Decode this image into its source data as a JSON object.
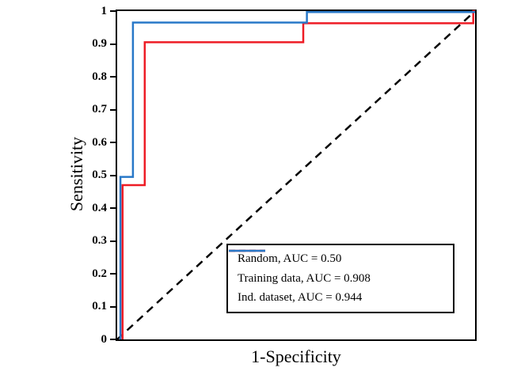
{
  "figure": {
    "background": "#ffffff",
    "border_color": "#000000"
  },
  "chart_data": {
    "type": "line",
    "subtype": "roc-curve",
    "title": "",
    "xlabel": "1-Specificity",
    "ylabel": "Sensitivity",
    "xlim": [
      0,
      1
    ],
    "ylim": [
      0,
      1
    ],
    "yticks": [
      0,
      0.1,
      0.2,
      0.3,
      0.4,
      0.5,
      0.6,
      0.7,
      0.8,
      0.9,
      1
    ],
    "xticks_labeled": false,
    "grid": false,
    "legend_position": "lower-right",
    "series": [
      {
        "name": "Random, AUC = 0.50",
        "color": "#000000",
        "style": "dashed",
        "width": 2.5,
        "points": [
          [
            0,
            0
          ],
          [
            1,
            1
          ]
        ]
      },
      {
        "name": "Training data, AUC = 0.908",
        "color": "#ee1c25",
        "style": "solid",
        "width": 2.5,
        "points": [
          [
            0.015,
            0
          ],
          [
            0.015,
            0.47
          ],
          [
            0.077,
            0.47
          ],
          [
            0.077,
            0.905
          ],
          [
            0.52,
            0.905
          ],
          [
            0.52,
            0.963
          ],
          [
            0.995,
            0.963
          ],
          [
            0.995,
            1
          ],
          [
            1,
            1
          ]
        ]
      },
      {
        "name": "Ind.  dataset, AUC = 0.944",
        "color": "#2878c8",
        "style": "solid",
        "width": 2.5,
        "points": [
          [
            0.009,
            0
          ],
          [
            0.009,
            0.495
          ],
          [
            0.044,
            0.495
          ],
          [
            0.044,
            0.965
          ],
          [
            0.53,
            0.965
          ],
          [
            0.53,
            0.997
          ],
          [
            1,
            0.997
          ]
        ]
      }
    ]
  }
}
